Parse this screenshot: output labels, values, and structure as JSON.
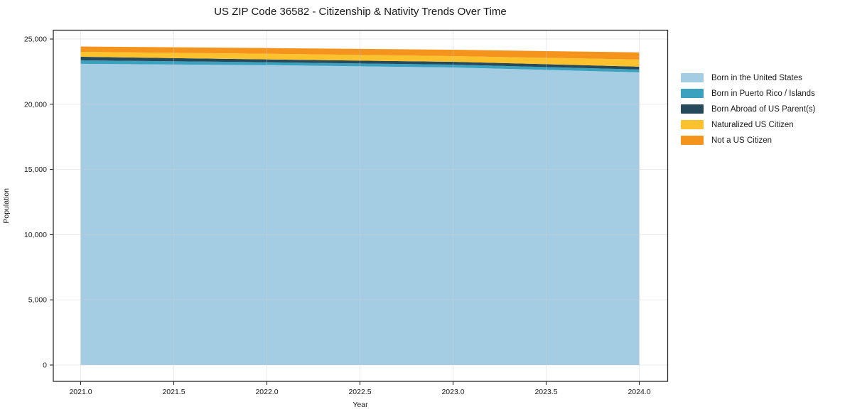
{
  "chart_data": {
    "type": "area",
    "stacked": true,
    "title": "US ZIP Code 36582 - Citizenship & Nativity Trends Over Time",
    "xlabel": "Year",
    "ylabel": "Population",
    "x": [
      2021,
      2022,
      2023,
      2024
    ],
    "series": [
      {
        "name": "Born in the United States",
        "color": "#A4CDE4",
        "values": [
          23100,
          23000,
          22820,
          22450
        ]
      },
      {
        "name": "Born in Puerto Rico / Islands",
        "color": "#3AA1BE",
        "values": [
          270,
          220,
          218,
          215
        ]
      },
      {
        "name": "Born Abroad of US Parent(s)",
        "color": "#26495C",
        "values": [
          270,
          218,
          218,
          220
        ]
      },
      {
        "name": "Naturalized US Citizen",
        "color": "#FCC22D",
        "values": [
          380,
          435,
          436,
          545
        ]
      },
      {
        "name": "Not a US Citizen",
        "color": "#F5941D",
        "values": [
          410,
          436,
          490,
          545
        ]
      }
    ],
    "xlim": [
      2020.85,
      2024.15
    ],
    "ylim": [
      0,
      25000
    ],
    "x_ticks": [
      "2021.0",
      "2021.5",
      "2022.0",
      "2022.5",
      "2023.0",
      "2023.5",
      "2024.0"
    ],
    "x_tick_values": [
      2021,
      2021.5,
      2022,
      2022.5,
      2023,
      2023.5,
      2024
    ],
    "y_ticks": [
      "0",
      "5,000",
      "10,000",
      "15,000",
      "20,000",
      "25,000"
    ],
    "y_tick_values": [
      0,
      5000,
      10000,
      15000,
      20000,
      25000
    ],
    "grid": true,
    "legend_position": "right",
    "colors": {
      "text": "#1a1a1a",
      "spine": "#2b2b2b",
      "gridline": "#cfcfcf",
      "background": "#ffffff"
    }
  }
}
